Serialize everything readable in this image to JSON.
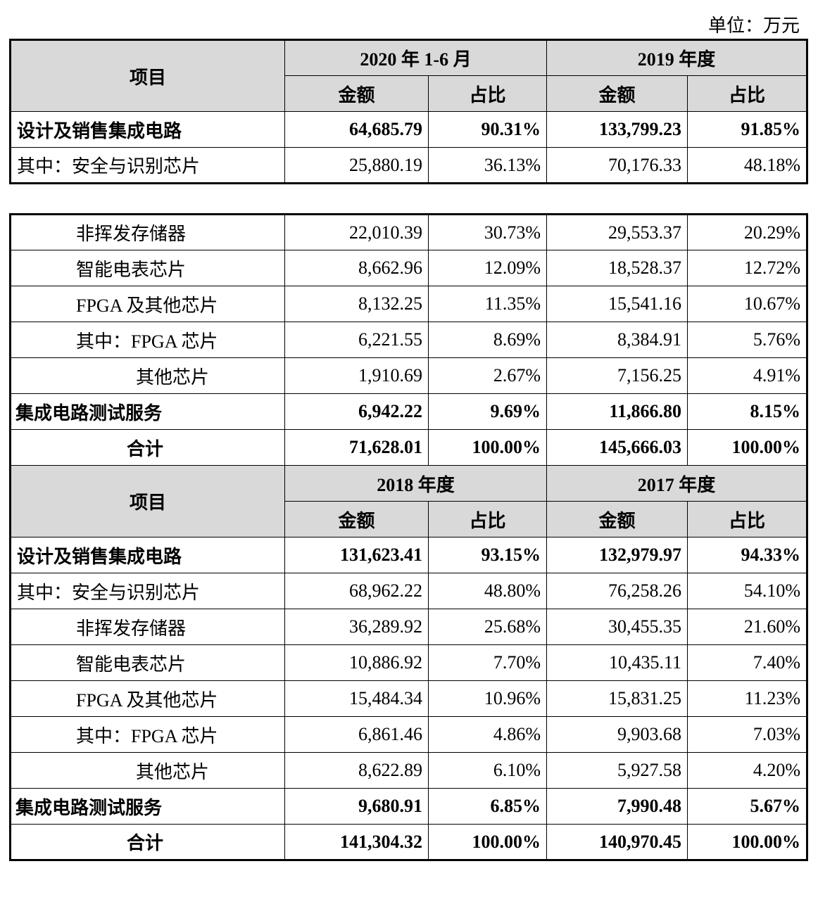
{
  "unit": "单位：万元",
  "tables": [
    {
      "header": {
        "item": "项目",
        "periods": [
          "2020 年 1-6 月",
          "2019 年度"
        ],
        "subheaders": [
          "金额",
          "占比",
          "金额",
          "占比"
        ]
      },
      "rows": [
        [
          "设计及销售集成电路",
          "64,685.79",
          "90.31%",
          "133,799.23",
          "91.85%"
        ],
        [
          "其中：安全与识别芯片",
          "25,880.19",
          "36.13%",
          "70,176.33",
          "48.18%"
        ],
        [
          "非挥发存储器",
          "22,010.39",
          "30.73%",
          "29,553.37",
          "20.29%"
        ],
        [
          "智能电表芯片",
          "8,662.96",
          "12.09%",
          "18,528.37",
          "12.72%"
        ],
        [
          "FPGA 及其他芯片",
          "8,132.25",
          "11.35%",
          "15,541.16",
          "10.67%"
        ],
        [
          "其中：FPGA 芯片",
          "6,221.55",
          "8.69%",
          "8,384.91",
          "5.76%"
        ],
        [
          "其他芯片",
          "1,910.69",
          "2.67%",
          "7,156.25",
          "4.91%"
        ],
        [
          "集成电路测试服务",
          "6,942.22",
          "9.69%",
          "11,866.80",
          "8.15%"
        ],
        [
          "合计",
          "71,628.01",
          "100.00%",
          "145,666.03",
          "100.00%"
        ]
      ]
    },
    {
      "header": {
        "item": "项目",
        "periods": [
          "2018 年度",
          "2017 年度"
        ],
        "subheaders": [
          "金额",
          "占比",
          "金额",
          "占比"
        ]
      },
      "rows": [
        [
          "设计及销售集成电路",
          "131,623.41",
          "93.15%",
          "132,979.97",
          "94.33%"
        ],
        [
          "其中：安全与识别芯片",
          "68,962.22",
          "48.80%",
          "76,258.26",
          "54.10%"
        ],
        [
          "非挥发存储器",
          "36,289.92",
          "25.68%",
          "30,455.35",
          "21.60%"
        ],
        [
          "智能电表芯片",
          "10,886.92",
          "7.70%",
          "10,435.11",
          "7.40%"
        ],
        [
          "FPGA 及其他芯片",
          "15,484.34",
          "10.96%",
          "15,831.25",
          "11.23%"
        ],
        [
          "其中：FPGA 芯片",
          "6,861.46",
          "4.86%",
          "9,903.68",
          "7.03%"
        ],
        [
          "其他芯片",
          "8,622.89",
          "6.10%",
          "5,927.58",
          "4.20%"
        ],
        [
          "集成电路测试服务",
          "9,680.91",
          "6.85%",
          "7,990.48",
          "5.67%"
        ],
        [
          "合计",
          "141,304.32",
          "100.00%",
          "140,970.45",
          "100.00%"
        ]
      ]
    }
  ]
}
